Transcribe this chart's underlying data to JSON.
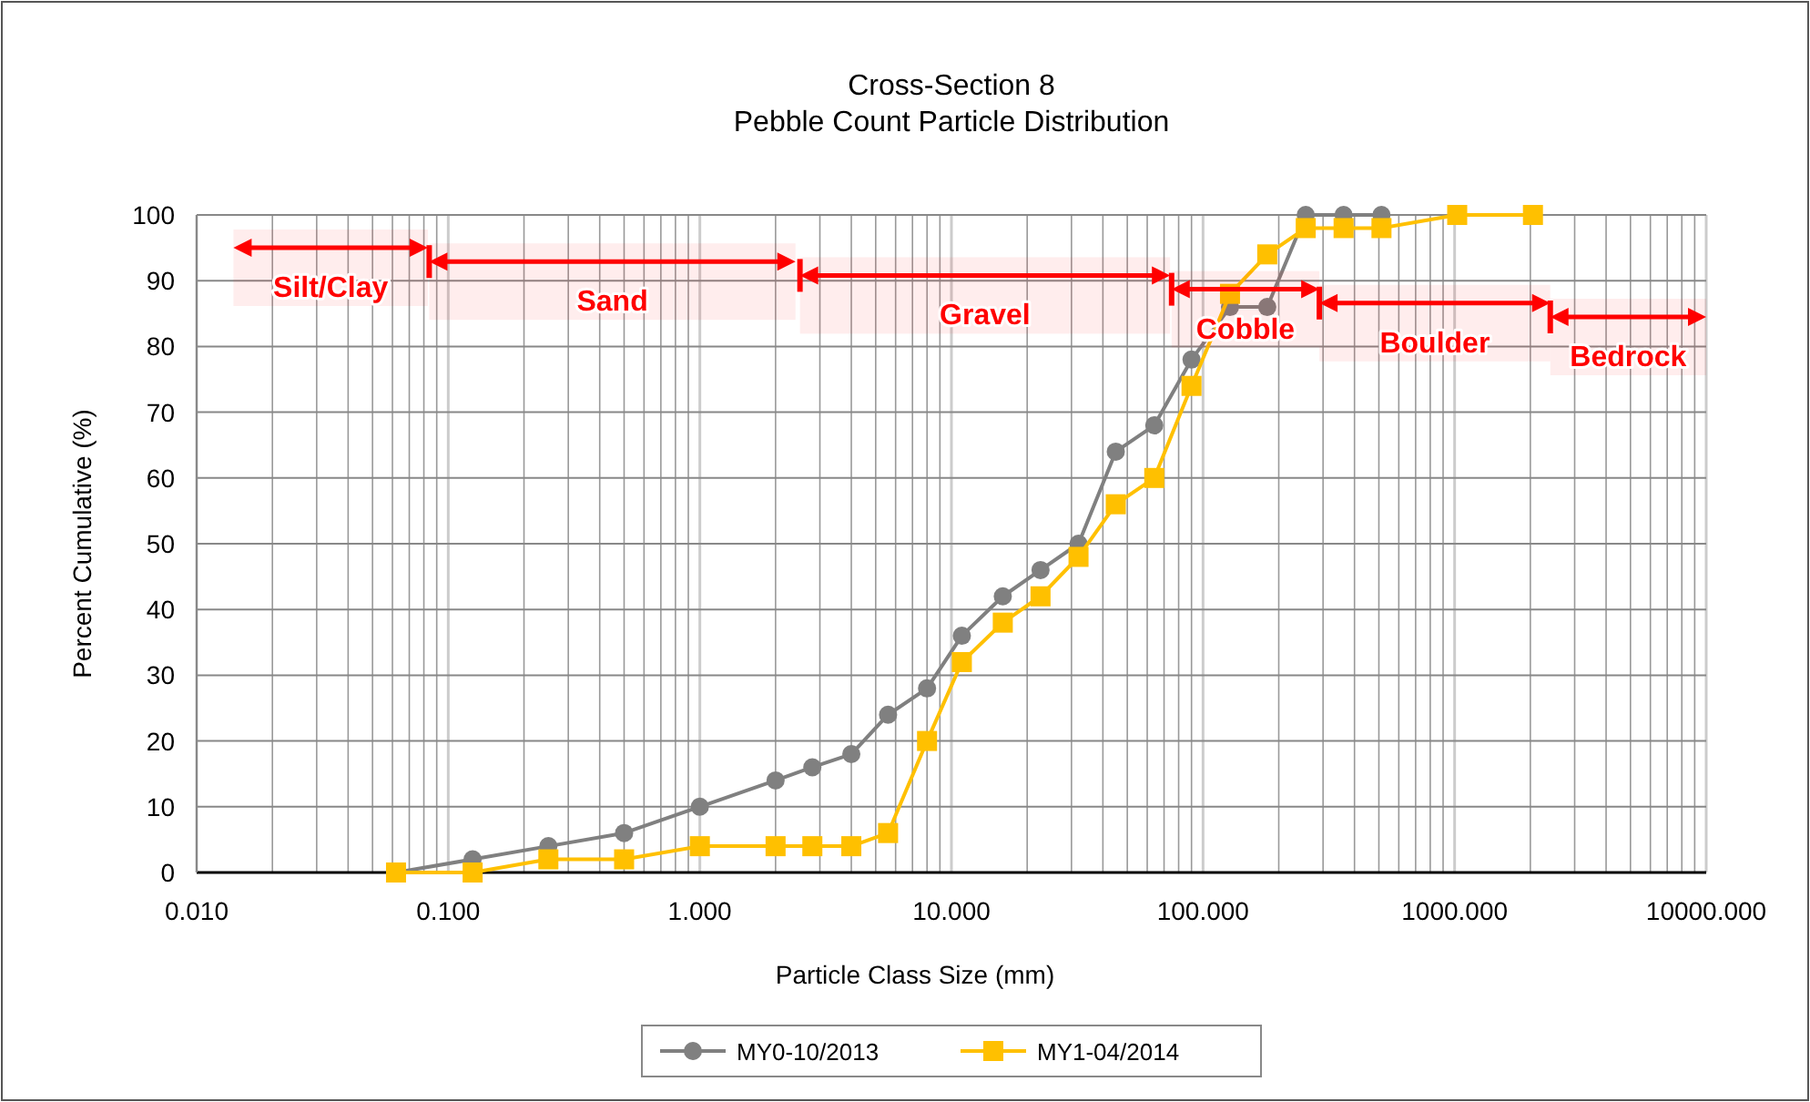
{
  "chart_data": {
    "type": "line",
    "title": "Cross-Section 8",
    "subtitle": "Pebble Count Particle Distribution",
    "xlabel": "Particle Class Size (mm)",
    "ylabel": "Percent Cumulative (%)",
    "log": "x",
    "xlim": [
      0.01,
      10000
    ],
    "xticks": [
      {
        "value": 0.01,
        "label": "0.010"
      },
      {
        "value": 0.1,
        "label": "0.100"
      },
      {
        "value": 1,
        "label": "1.000"
      },
      {
        "value": 10,
        "label": "10.000"
      },
      {
        "value": 100,
        "label": "100.000"
      },
      {
        "value": 1000,
        "label": "1000.000"
      },
      {
        "value": 10000,
        "label": "10000.000"
      }
    ],
    "ylim": [
      0,
      100
    ],
    "yticks": [
      0,
      10,
      20,
      30,
      40,
      50,
      60,
      70,
      80,
      90,
      100
    ],
    "grid": true,
    "legend": "bottom",
    "series": [
      {
        "name": "MY0-10/2013",
        "color": "#808080",
        "marker": "circle",
        "x": [
          0.062,
          0.125,
          0.25,
          0.5,
          1,
          2,
          2.8,
          4,
          5.6,
          8,
          11,
          16,
          22.6,
          32,
          45,
          64,
          90,
          128,
          180,
          256,
          362,
          512
        ],
        "values": [
          0,
          2,
          4,
          6,
          10,
          14,
          16,
          18,
          24,
          28,
          36,
          42,
          46,
          50,
          64,
          68,
          78,
          86,
          86,
          100,
          100,
          100
        ]
      },
      {
        "name": "MY1-04/2014",
        "color": "#ffc000",
        "marker": "square",
        "x": [
          0.062,
          0.125,
          0.25,
          0.5,
          1,
          2,
          2.8,
          4,
          5.6,
          8,
          11,
          16,
          22.6,
          32,
          45,
          64,
          90,
          128,
          180,
          256,
          362,
          512,
          1024,
          2048
        ],
        "values": [
          0,
          0,
          2,
          2,
          4,
          4,
          4,
          4,
          6,
          20,
          32,
          38,
          42,
          48,
          56,
          60,
          74,
          88,
          94,
          98,
          98,
          98,
          100,
          100
        ]
      }
    ],
    "bands": [
      {
        "axis": "x",
        "from": 0.014,
        "to": 0.083,
        "label": "Silt/Clay",
        "color": "#ff0000"
      },
      {
        "axis": "x",
        "from": 0.084,
        "to": 2.4,
        "label": "Sand",
        "color": "#ff0000"
      },
      {
        "axis": "x",
        "from": 2.5,
        "to": 74,
        "label": "Gravel",
        "color": "#ff0000"
      },
      {
        "axis": "x",
        "from": 75,
        "to": 290,
        "label": "Cobble",
        "color": "#ff0000"
      },
      {
        "axis": "x",
        "from": 290,
        "to": 2400,
        "label": "Boulder",
        "color": "#ff0000"
      },
      {
        "axis": "x",
        "from": 2400,
        "to": 10000,
        "label": "Bedrock",
        "color": "#ff0000"
      }
    ]
  }
}
